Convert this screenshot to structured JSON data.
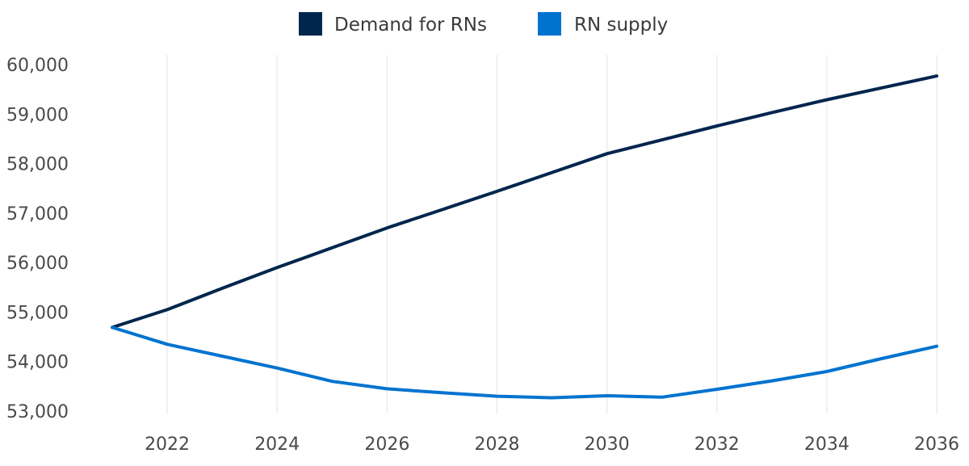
{
  "chart_data": {
    "type": "line",
    "title": "",
    "xlabel": "",
    "ylabel": "",
    "x": [
      2021,
      2022,
      2023,
      2024,
      2025,
      2026,
      2027,
      2028,
      2029,
      2030,
      2031,
      2032,
      2033,
      2034,
      2035,
      2036
    ],
    "x_ticks": [
      "2022",
      "2024",
      "2026",
      "2028",
      "2030",
      "2032",
      "2034",
      "2036"
    ],
    "y_ticks": [
      "53,000",
      "54,000",
      "55,000",
      "56,000",
      "57,000",
      "58,000",
      "59,000",
      "60,000"
    ],
    "ylim": [
      53000,
      60000
    ],
    "xlim": [
      2021,
      2036
    ],
    "grid": "vertical",
    "legend_position": "top-center",
    "series": [
      {
        "name": "Demand for RNs",
        "color": "#00264d",
        "values": [
          54690,
          55050,
          55480,
          55900,
          56300,
          56700,
          57070,
          57440,
          57820,
          58200,
          58480,
          58760,
          59030,
          59290,
          59530,
          59770
        ]
      },
      {
        "name": "RN supply",
        "color": "#0073cf",
        "values": [
          54690,
          54350,
          54110,
          53870,
          53600,
          53450,
          53370,
          53300,
          53270,
          53310,
          53280,
          53440,
          53610,
          53800,
          54060,
          54310
        ]
      }
    ]
  }
}
